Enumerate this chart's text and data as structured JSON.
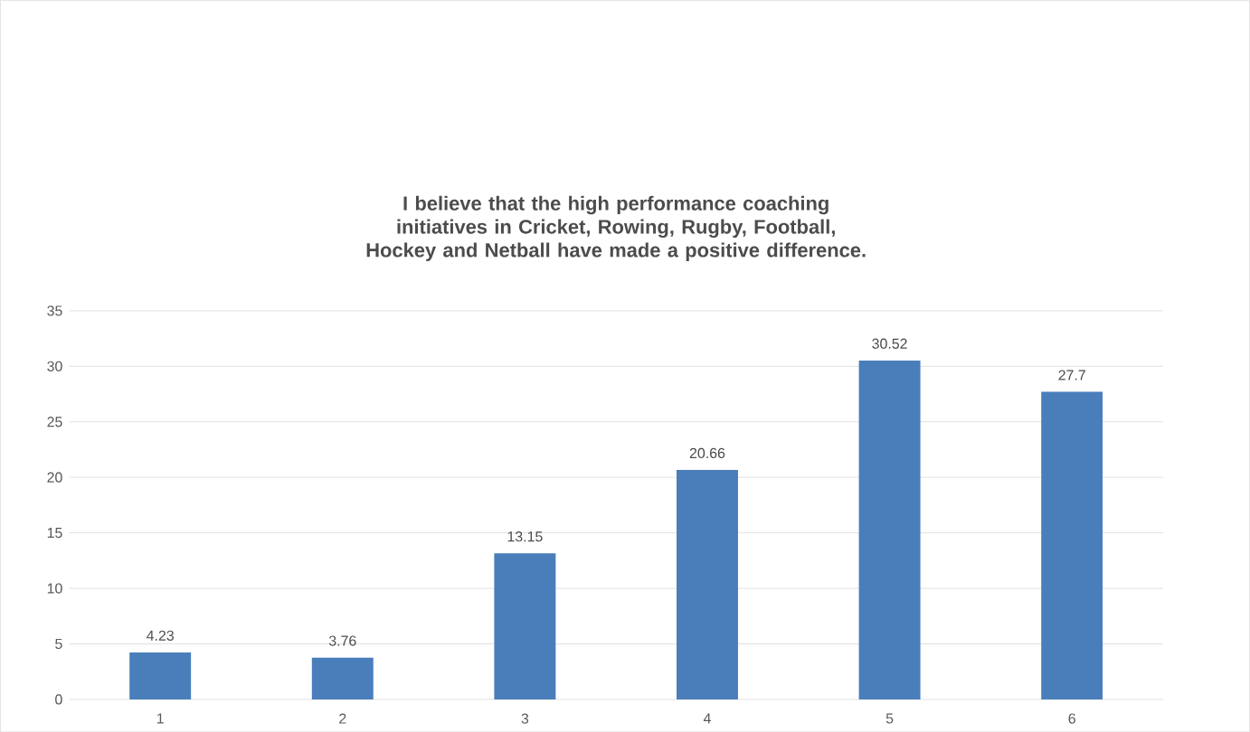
{
  "chart_data": {
    "type": "bar",
    "title": "I believe that the high performance coaching initiatives in Cricket, Rowing, Rugby, Football, Hockey and Netball have made a positive difference.",
    "categories": [
      "1",
      "2",
      "3",
      "4",
      "5",
      "6"
    ],
    "values": [
      4.23,
      3.76,
      13.15,
      20.66,
      30.52,
      27.7
    ],
    "color": "#4a7ebb",
    "ylim": [
      0,
      35
    ],
    "yticks": [
      0,
      5,
      10,
      15,
      20,
      25,
      30,
      35
    ],
    "grid": "y",
    "data_labels": true
  }
}
